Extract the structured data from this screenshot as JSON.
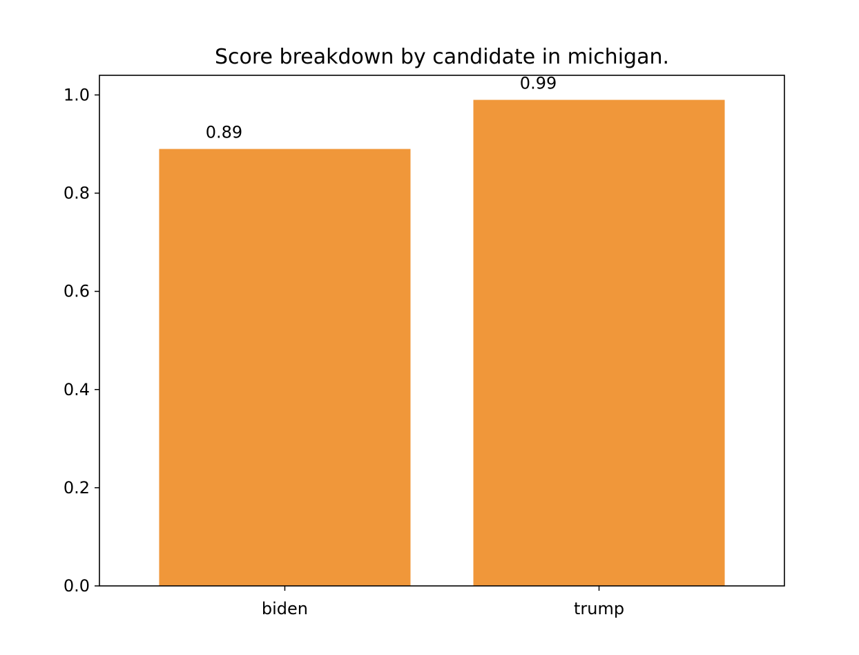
{
  "chart_data": {
    "type": "bar",
    "title": "Score breakdown by candidate in michigan.",
    "xlabel": "",
    "ylabel": "",
    "categories": [
      "biden",
      "trump"
    ],
    "values": [
      0.89,
      0.99
    ],
    "data_labels": [
      "0.89",
      "0.99"
    ],
    "ylim": [
      0,
      1.04
    ],
    "yticks": [
      0.0,
      0.2,
      0.4,
      0.6,
      0.8,
      1.0
    ],
    "ytick_labels": [
      "0.0",
      "0.2",
      "0.4",
      "0.6",
      "0.8",
      "1.0"
    ],
    "bar_color": "#f0973a",
    "grid": false,
    "legend": "none"
  }
}
